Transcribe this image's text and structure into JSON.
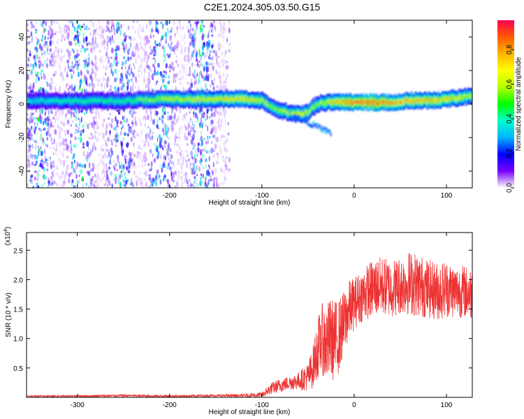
{
  "title": "C2E1.2024.305.03.50.G15",
  "chart_data": [
    {
      "type": "heatmap",
      "xlabel": "Height of straight line (km)",
      "ylabel": "Frequency (Hz)",
      "xlim": [
        -355,
        128
      ],
      "ylim": [
        -50,
        50
      ],
      "xticks": [
        -300,
        -200,
        -100,
        0,
        100
      ],
      "yticks": [
        -40,
        -20,
        0,
        20,
        40
      ],
      "colorbar": {
        "label": "Normalized spectral amplitude",
        "range": [
          0.0,
          0.97
        ],
        "ticks": [
          "0.0",
          "0.2",
          "0.4",
          "0.6",
          "0.8"
        ],
        "colors": [
          "#ffffff",
          "#7a00ff",
          "#0000ff",
          "#00b4ff",
          "#00ffcc",
          "#00ff00",
          "#b4ff00",
          "#ffff00",
          "#ffb400",
          "#ff5a00",
          "#ff0050"
        ]
      },
      "ridge": {
        "x": [
          -350,
          -300,
          -250,
          -200,
          -150,
          -120,
          -100,
          -90,
          -80,
          -70,
          -60,
          -50,
          -45,
          -40,
          -30,
          -20,
          -10,
          0,
          20,
          40,
          60,
          80,
          100,
          115,
          128
        ],
        "y": [
          2,
          2,
          2,
          3,
          3,
          3,
          2,
          -2,
          -4,
          -5,
          -6,
          -5,
          -2,
          0,
          1,
          1,
          1,
          1,
          1,
          1,
          2,
          2,
          3,
          4,
          5
        ],
        "amplitude": [
          0.35,
          0.4,
          0.4,
          0.55,
          0.6,
          0.65,
          0.55,
          0.5,
          0.5,
          0.55,
          0.6,
          0.55,
          0.5,
          0.5,
          0.6,
          0.7,
          0.75,
          0.8,
          0.85,
          0.75,
          0.7,
          0.7,
          0.65,
          0.6,
          0.55
        ]
      },
      "background_noise": {
        "x_range": [
          -355,
          -135
        ],
        "level": 0.2
      }
    },
    {
      "type": "line",
      "xlabel": "Height of straight line (km)",
      "ylabel": "SNR (10 * v/v)",
      "yscale_label": "(x10",
      "yscale_exponent": "4",
      "xlim": [
        -355,
        128
      ],
      "ylim": [
        0,
        2.8
      ],
      "xticks": [
        -300,
        -200,
        -100,
        0,
        100
      ],
      "yticks": [
        0.5,
        1.0,
        1.5,
        2.0,
        2.5
      ],
      "ytick_labels": [
        "0.5",
        "1.0",
        "1.5",
        "2.0",
        "2.5"
      ],
      "series": [
        {
          "color": "#ee3333",
          "x": [
            -355,
            -300,
            -250,
            -200,
            -150,
            -120,
            -100,
            -90,
            -80,
            -70,
            -60,
            -50,
            -45,
            -40,
            -35,
            -30,
            -25,
            -20,
            -15,
            -10,
            -5,
            0,
            10,
            20,
            30,
            40,
            50,
            60,
            70,
            80,
            90,
            100,
            110,
            120,
            128
          ],
          "y": [
            0.02,
            0.02,
            0.03,
            0.02,
            0.03,
            0.03,
            0.04,
            0.15,
            0.2,
            0.25,
            0.28,
            0.35,
            0.5,
            0.8,
            1.0,
            0.9,
            1.0,
            0.95,
            1.1,
            1.3,
            1.5,
            1.6,
            1.75,
            1.85,
            1.9,
            1.85,
            1.9,
            1.95,
            1.9,
            1.85,
            1.8,
            1.85,
            1.8,
            1.8,
            1.75
          ],
          "spread": [
            0.01,
            0.02,
            0.02,
            0.02,
            0.02,
            0.03,
            0.05,
            0.1,
            0.12,
            0.12,
            0.15,
            0.25,
            0.35,
            0.5,
            0.6,
            0.7,
            0.7,
            0.7,
            0.6,
            0.55,
            0.5,
            0.45,
            0.45,
            0.5,
            0.5,
            0.5,
            0.5,
            0.55,
            0.55,
            0.5,
            0.5,
            0.5,
            0.45,
            0.45,
            0.45
          ]
        }
      ]
    }
  ]
}
